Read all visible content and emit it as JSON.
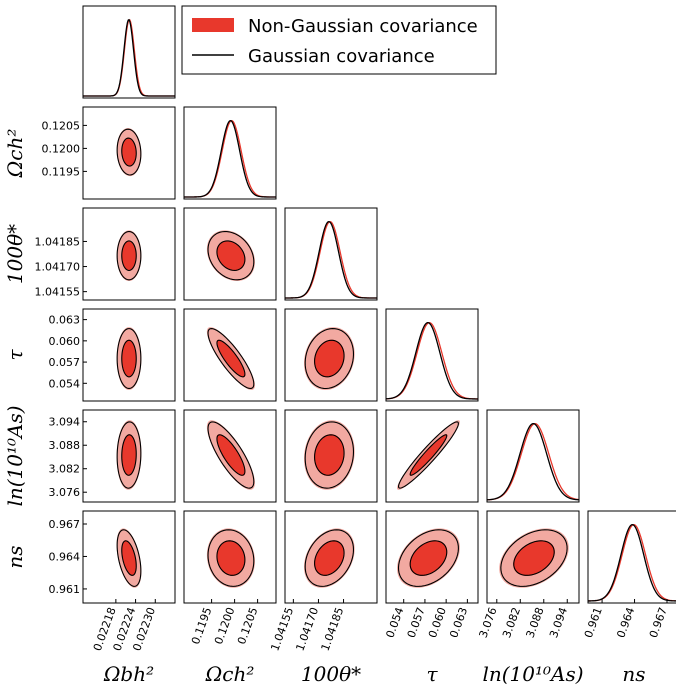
{
  "chart_data": {
    "type": "corner",
    "colors": {
      "ng_fill_inner": "#E8382C",
      "ng_fill_outer": "#F2A9A1",
      "g_line": "#000000",
      "ng_line": "#E8382C"
    },
    "legend": {
      "placement": "top-right",
      "entries": [
        {
          "name": "Non-Gaussian covariance"
        },
        {
          "name": "Gaussian covariance"
        }
      ]
    },
    "params": [
      {
        "label": "Ωbh²",
        "mean": 0.02222,
        "sigma": 1.45e-05,
        "range": [
          0.02208,
          0.02236
        ],
        "ticks": [
          0.02218,
          0.02224,
          0.0223
        ],
        "tick_labels": [
          "0.02218",
          "0.02224",
          "0.02230"
        ]
      },
      {
        "label": "Ωch²",
        "mean": 0.11992,
        "sigma": 0.0002,
        "range": [
          0.1189,
          0.1209
        ],
        "ticks": [
          0.1195,
          0.12,
          0.1205
        ],
        "tick_labels": [
          "0.1195",
          "0.1200",
          "0.1205"
        ]
      },
      {
        "label": "100θ*",
        "mean": 1.041765,
        "sigma": 5.8e-05,
        "range": [
          1.0415,
          1.04205
        ],
        "ticks": [
          1.04155,
          1.0417,
          1.04185
        ],
        "tick_labels": [
          "1.04155",
          "1.04170",
          "1.04185"
        ]
      },
      {
        "label": "τ",
        "mean": 0.0575,
        "sigma": 0.0017,
        "range": [
          0.0515,
          0.0645
        ],
        "ticks": [
          0.054,
          0.057,
          0.06,
          0.063
        ],
        "tick_labels": [
          "0.054",
          "0.057",
          "0.060",
          "0.063"
        ]
      },
      {
        "label": "ln(10¹⁰As)",
        "mean": 3.0855,
        "sigma": 0.0034,
        "range": [
          3.0735,
          3.097
        ],
        "ticks": [
          3.076,
          3.082,
          3.088,
          3.094
        ],
        "tick_labels": [
          "3.076",
          "3.082",
          "3.088",
          "3.094"
        ]
      },
      {
        "label": "ns",
        "mean": 0.96385,
        "sigma": 0.00105,
        "range": [
          0.9597,
          0.9682
        ],
        "ticks": [
          0.961,
          0.964,
          0.967
        ],
        "tick_labels": [
          "0.961",
          "0.964",
          "0.967"
        ]
      }
    ],
    "correlations": [
      {
        "pair": [
          0,
          1
        ],
        "rho": -0.08
      },
      {
        "pair": [
          0,
          2
        ],
        "rho": 0.0
      },
      {
        "pair": [
          1,
          2
        ],
        "rho": -0.25
      },
      {
        "pair": [
          0,
          3
        ],
        "rho": 0.0
      },
      {
        "pair": [
          1,
          3
        ],
        "rho": -0.85
      },
      {
        "pair": [
          2,
          3
        ],
        "rho": 0.15
      },
      {
        "pair": [
          0,
          4
        ],
        "rho": 0.05
      },
      {
        "pair": [
          1,
          4
        ],
        "rho": -0.8
      },
      {
        "pair": [
          2,
          4
        ],
        "rho": 0.1
      },
      {
        "pair": [
          3,
          4
        ],
        "rho": 0.95
      },
      {
        "pair": [
          0,
          5
        ],
        "rho": -0.45
      },
      {
        "pair": [
          1,
          5
        ],
        "rho": -0.1
      },
      {
        "pair": [
          2,
          5
        ],
        "rho": 0.3
      },
      {
        "pair": [
          3,
          5
        ],
        "rho": 0.35
      },
      {
        "pair": [
          4,
          5
        ],
        "rho": 0.35
      }
    ]
  }
}
